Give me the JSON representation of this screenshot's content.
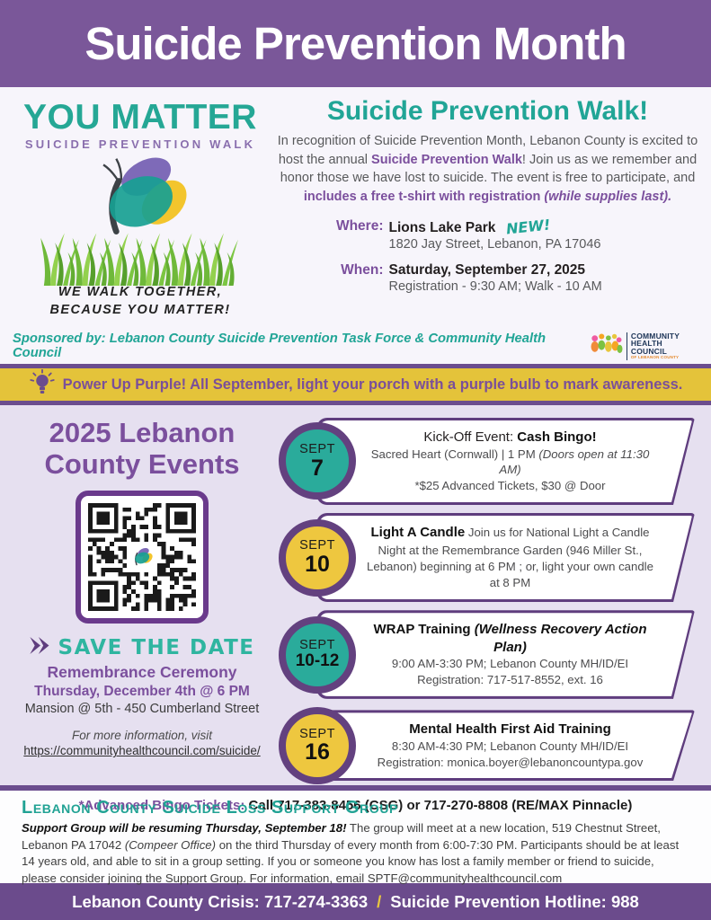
{
  "colors": {
    "purple_header": "#7a5799",
    "purple_text": "#7b4f9d",
    "purple_dark": "#5f3d7e",
    "teal": "#21a596",
    "yellow": "#e4c33a",
    "lavender": "#e6e0f0",
    "footer_purple": "#6b4b8c"
  },
  "header": {
    "title": "Suicide Prevention Month"
  },
  "logo": {
    "title": "YOU MATTER",
    "subtitle": "SUICIDE PREVENTION WALK",
    "butterfly_icon": "butterfly-icon",
    "grass_icon": "grass-icon",
    "tagline_line1": "WE WALK TOGETHER,",
    "tagline_line2": "BECAUSE YOU MATTER!"
  },
  "walk": {
    "heading": "Suicide Prevention Walk!",
    "intro_s1": "In recognition of Suicide Prevention Month, Lebanon County is excited to host the annual ",
    "intro_b1": "Suicide Prevention Walk",
    "intro_s2": "!  Join us as we remember and honor those we have lost to suicide. The event is free to participate, and ",
    "intro_b2": "includes a free t-shirt with registration ",
    "intro_bi": "(while supplies last).",
    "where_label": "Where:",
    "where_place": "Lions Lake Park",
    "where_new": "NEW!",
    "where_address": "1820 Jay Street, Lebanon, PA 17046",
    "when_label": "When:",
    "when_date": "Saturday, September 27, 2025",
    "when_times": "Registration - 9:30 AM; Walk - 10 AM"
  },
  "sponsor": {
    "text": "Sponsored by: Lebanon County Suicide Prevention Task Force & Community Health Council",
    "logo_line1": "COMMUNITY",
    "logo_line2": "HEALTH COUNCIL",
    "logo_line3": "OF LEBANON COUNTY"
  },
  "banner": {
    "lightbulb_icon": "lightbulb-icon",
    "text": "Power Up Purple! All September, light your porch with a purple bulb to mark awareness."
  },
  "events": {
    "heading_line1": "2025 Lebanon",
    "heading_line2": "County Events",
    "qr_icon": "qr-code",
    "cards": [
      {
        "month": "SEPT",
        "day": "7",
        "circle_color": "teal",
        "line1a": "Kick-Off Event: ",
        "line1b": "Cash Bingo!",
        "line2a": "Sacred Heart (Cornwall) | 1 PM ",
        "line2b": "(Doors open at 11:30 AM)",
        "line3": "*$25 Advanced Tickets, $30 @ Door"
      },
      {
        "month": "SEPT",
        "day": "10",
        "circle_color": "yellow",
        "bold": "Light A Candle",
        "text": "  Join us for National Light a Candle Night at the Remembrance Garden (946 Miller St., Lebanon) beginning at 6 PM ; or, light your own candle at 8 PM"
      },
      {
        "month": "SEPT",
        "day": "10-12",
        "circle_color": "teal",
        "line1a": "WRAP Training ",
        "line1b": "(Wellness Recovery Action Plan)",
        "line2": "9:00 AM-3:30 PM; Lebanon County MH/ID/EI",
        "line3": "Registration: 717-517-8552, ext. 16"
      },
      {
        "month": "SEPT",
        "day": "16",
        "circle_color": "yellow",
        "line1": "Mental Health First Aid Training",
        "line2": "8:30 AM-4:30 PM; Lebanon County MH/ID/EI",
        "line3": "Registration: monica.boyer@lebanoncountypa.gov"
      }
    ],
    "save_the_date": {
      "arrow_icon": "arrow-icon",
      "title": "SAVE THE DATE",
      "event": "Remembrance Ceremony",
      "when": "Thursday, December 4th @ 6 PM",
      "where": "Mansion @ 5th - 450 Cumberland Street",
      "info": "For more information, visit",
      "url": "https://communityhealthcouncil.com/suicide/"
    },
    "bingo_label": "*Advanced Bingo Tickets: ",
    "bingo_value": "Call 717-383-8456 (CSG) or 717-270-8808 (RE/MAX Pinnacle)"
  },
  "support": {
    "heading": "Lebanon County Suicide Loss Support Group",
    "intro_bold": "Support Group will be resuming Thursday, September 18!",
    "p1": "  The group will meet at a new location, 519 Chestnut Street, Lebanon PA 17042 ",
    "p_italic": "(Compeer Office)",
    "p2": " on the third Thursday of every month from 6:00-7:30 PM.  Participants should be at least 14 years old, and able to sit in a group setting.  If you or someone you know has lost a family member or friend to suicide, please consider joining the Support Group.  For information, email ",
    "email": "SPTF@communityhealthcouncil.com"
  },
  "footer": {
    "crisis": "Lebanon County Crisis: 717-274-3363",
    "separator": "/",
    "hotline": "Suicide Prevention Hotline: 988"
  }
}
